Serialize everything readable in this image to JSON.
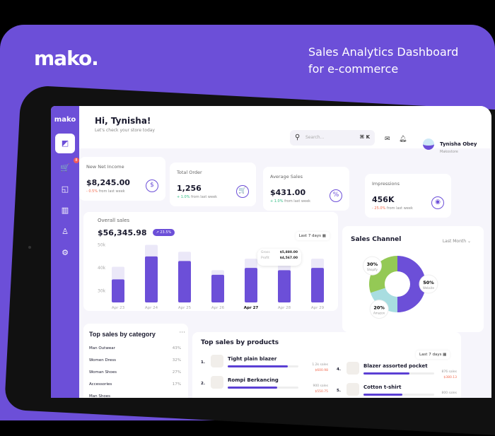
{
  "promo": {
    "logo": "mako.",
    "tagline_1": "Sales Analytics Dashboard",
    "tagline_2": "for e-commerce"
  },
  "sidebar": {
    "brand": "mako",
    "cart_badge": "8",
    "items": [
      {
        "icon": "dashboard-icon",
        "glyph": "◩"
      },
      {
        "icon": "cart-icon",
        "glyph": "🛒"
      },
      {
        "icon": "bag-icon",
        "glyph": "◱"
      },
      {
        "icon": "chart-icon",
        "glyph": "▥"
      },
      {
        "icon": "user-icon",
        "glyph": "♙"
      },
      {
        "icon": "settings-icon",
        "glyph": "⚙"
      }
    ]
  },
  "header": {
    "greeting": "Hi, Tynisha!",
    "subtitle": "Let's check your store today",
    "search_placeholder": "Search...",
    "shortcut": "⌘ K",
    "user_name": "Tynisha Obey",
    "user_store": "Makostore"
  },
  "kpis": [
    {
      "label": "New Net Income",
      "value": "$8,245.00",
      "change": "- 0.5%",
      "trend": "negative",
      "suffix": " from last week",
      "icon": "$"
    },
    {
      "label": "Total Order",
      "value": "1,256",
      "change": "+ 1.0%",
      "trend": "positive",
      "suffix": " from last week",
      "icon": "🛒"
    },
    {
      "label": "Average Sales",
      "value": "$431.00",
      "change": "+ 1.0%",
      "trend": "positive",
      "suffix": " from last week",
      "icon": "%"
    },
    {
      "label": "Impressions",
      "value": "456K",
      "change": "- 25.0%",
      "trend": "negative",
      "suffix": " from last week",
      "icon": "◉"
    }
  ],
  "overall": {
    "label": "Overall sales",
    "value": "$56,345.98",
    "badge": "↗ 23.5%",
    "range": "Last 7 days",
    "tooltip": {
      "gross_label": "Gross",
      "gross_value": "$5,880.00",
      "profit_label": "Profit",
      "profit_value": "$4,567.00"
    }
  },
  "chart_data": {
    "type": "bar",
    "categories": [
      "Apr 23",
      "Apr 24",
      "Apr 25",
      "Apr 26",
      "Apr 27",
      "Apr 28",
      "Apr 29"
    ],
    "series": [
      {
        "name": "Gross",
        "values": [
          40.5,
          50,
          47,
          39,
          44,
          43,
          44
        ]
      },
      {
        "name": "Profit",
        "values": [
          35,
          45,
          43,
          37,
          40,
          39,
          40
        ]
      }
    ],
    "yticks": [
      "30k",
      "40k",
      "50k"
    ],
    "ylim": [
      25,
      52
    ],
    "highlight": "Apr 27",
    "colors": {
      "Gross": "#ebe8f8",
      "Profit": "#6c4fd8"
    }
  },
  "channel": {
    "title": "Sales Channel",
    "range": "Last Month",
    "chart_data": {
      "type": "pie",
      "slices": [
        {
          "label": "Website",
          "value": 50,
          "color": "#6c4fd8"
        },
        {
          "label": "Amazon",
          "value": 20,
          "color": "#a8dde0"
        },
        {
          "label": "Shopify",
          "value": 30,
          "color": "#94c955"
        }
      ]
    }
  },
  "category": {
    "title": "Top sales by category",
    "items": [
      {
        "name": "Man Outwear",
        "pct": "43%"
      },
      {
        "name": "Women Dress",
        "pct": "32%"
      },
      {
        "name": "Woman Shoes",
        "pct": "27%"
      },
      {
        "name": "Accessories",
        "pct": "17%"
      },
      {
        "name": "Man Shoes",
        "pct": ""
      }
    ]
  },
  "products": {
    "title": "Top sales by products",
    "range": "Last 7 days",
    "items": [
      {
        "rank": "1.",
        "name": "Tight plain blazer",
        "sales": "1.2k sales",
        "price": "$600.98",
        "progress": 0.85
      },
      {
        "rank": "2.",
        "name": "Rompi Berkancing",
        "sales": "900 sales",
        "price": "$550.75",
        "progress": 0.7
      },
      {
        "rank": "4.",
        "name": "Blazer assorted pocket",
        "sales": "876 sales",
        "price": "$380.13",
        "progress": 0.65
      },
      {
        "rank": "5.",
        "name": "Cotton t-shirt",
        "sales": "800 sales",
        "price": "",
        "progress": 0.55
      }
    ]
  }
}
